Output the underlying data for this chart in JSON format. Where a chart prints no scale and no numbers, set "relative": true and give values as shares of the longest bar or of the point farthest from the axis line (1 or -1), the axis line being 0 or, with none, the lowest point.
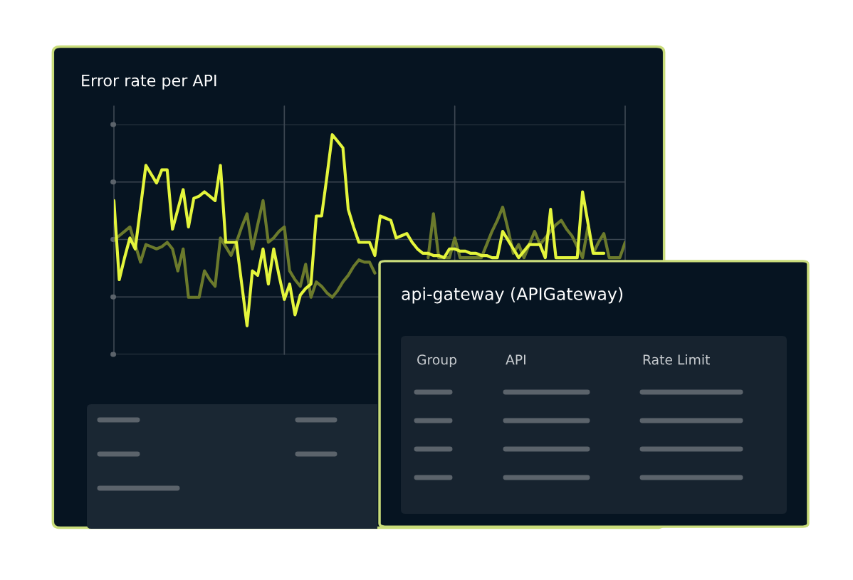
{
  "chart_data": [
    {
      "type": "line",
      "title": "Error rate per API",
      "relative": true,
      "grid": true,
      "categories": [
        null,
        null,
        null,
        null,
        null,
        null,
        null,
        null,
        null,
        null,
        null,
        null,
        null,
        null,
        null,
        null,
        null,
        null,
        null,
        null,
        null,
        null,
        null,
        null,
        null,
        null,
        null,
        null,
        null,
        null,
        null,
        null,
        null,
        null,
        null,
        null,
        null,
        null,
        null,
        null,
        null,
        null,
        null,
        null,
        null,
        null,
        null,
        null,
        null,
        null,
        null,
        null,
        null,
        null,
        null,
        null,
        null,
        null,
        null,
        null,
        null,
        null,
        null,
        null,
        null,
        null,
        null,
        null,
        null,
        null,
        null,
        null,
        null,
        null,
        null,
        null,
        null,
        null,
        null,
        null,
        null,
        null,
        null,
        null,
        null,
        null,
        null,
        null,
        null,
        null,
        null,
        null,
        null,
        null,
        null,
        null,
        null
      ],
      "series": [
        {
          "color": "#6b7a2c",
          "values": [
            0.52,
            0.54,
            0.56,
            0.58,
            0.5,
            0.42,
            0.5,
            0.49,
            0.48,
            0.49,
            0.51,
            0.48,
            0.38,
            0.48,
            0.26,
            0.26,
            0.26,
            0.38,
            0.34,
            0.31,
            0.53,
            0.49,
            0.45,
            0.51,
            0.58,
            0.64,
            0.48,
            0.59,
            0.7,
            0.51,
            0.53,
            0.56,
            0.58,
            0.38,
            0.34,
            0.31,
            0.41,
            0.26,
            0.33,
            0.31,
            0.28,
            0.26,
            0.29,
            0.33,
            0.36,
            0.4,
            0.43,
            0.42,
            0.42,
            0.37,
            null,
            null,
            null,
            null,
            null,
            null,
            null,
            null,
            null,
            0.44,
            0.64,
            0.44,
            0.44,
            0.44,
            0.53,
            0.44,
            0.44,
            0.44,
            0.44,
            0.44,
            0.5,
            0.56,
            0.61,
            0.67,
            0.57,
            0.46,
            0.5,
            0.44,
            0.5,
            0.56,
            0.5,
            0.53,
            0.56,
            0.59,
            0.61,
            0.57,
            0.54,
            0.49,
            0.44,
            0.58,
            0.46,
            0.51,
            0.55,
            0.44,
            0.44,
            0.44,
            0.51
          ]
        },
        {
          "color": "#e4f53c",
          "values": [
            0.7,
            0.34,
            0.44,
            0.53,
            0.48,
            0.67,
            0.86,
            0.82,
            0.78,
            0.84,
            0.84,
            0.57,
            0.66,
            0.75,
            0.58,
            0.71,
            0.72,
            0.74,
            0.72,
            0.7,
            0.86,
            0.51,
            0.51,
            0.51,
            0.32,
            0.13,
            0.38,
            0.36,
            0.48,
            0.32,
            0.48,
            0.36,
            0.25,
            0.32,
            0.18,
            0.27,
            0.3,
            0.32,
            0.63,
            0.63,
            0.81,
            1.0,
            0.97,
            0.94,
            0.66,
            0.58,
            0.51,
            0.51,
            0.51,
            0.45,
            0.63,
            0.62,
            0.61,
            0.53,
            0.54,
            0.55,
            0.51,
            0.48,
            0.46,
            0.46,
            0.45,
            0.45,
            0.44,
            0.48,
            0.48,
            0.47,
            0.47,
            0.46,
            0.46,
            0.45,
            0.45,
            0.44,
            0.44,
            0.56,
            0.52,
            0.48,
            0.44,
            0.47,
            0.5,
            0.5,
            0.5,
            0.44,
            0.66,
            0.44,
            0.44,
            0.44,
            0.44,
            0.44,
            0.74,
            0.6,
            0.46,
            0.46,
            0.46,
            null,
            null,
            null,
            null
          ]
        }
      ]
    },
    {
      "type": "other",
      "title": "api-gateway (APIGateway)",
      "annotations": [
        "Group",
        "API",
        "Rate Limit"
      ]
    }
  ]
}
